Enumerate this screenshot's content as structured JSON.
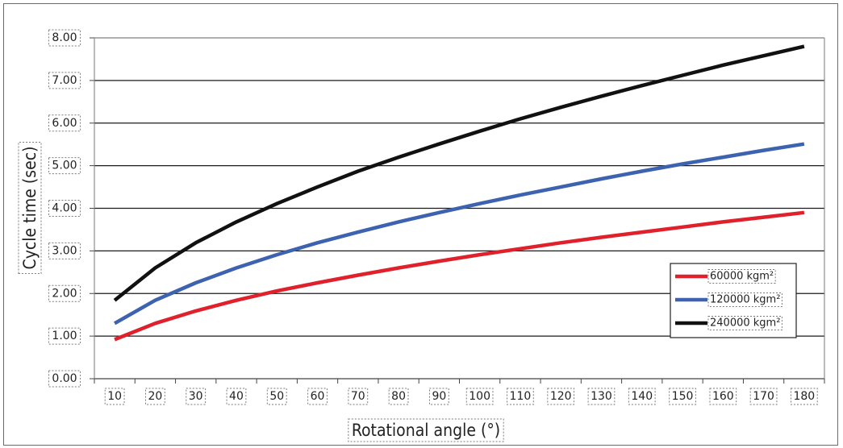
{
  "chart_data": {
    "type": "line",
    "xlabel": "Rotational angle (°)",
    "ylabel": "Cycle time (sec)",
    "x": [
      10,
      20,
      30,
      40,
      50,
      60,
      70,
      80,
      90,
      100,
      110,
      120,
      130,
      140,
      150,
      160,
      170,
      180
    ],
    "x_tick_labels": [
      "10",
      "20",
      "30",
      "40",
      "50",
      "60",
      "70",
      "80",
      "90",
      "100",
      "110",
      "120",
      "130",
      "140",
      "150",
      "160",
      "170",
      "180"
    ],
    "y_tick_labels": [
      "0.00",
      "1.00",
      "2.00",
      "3.00",
      "4.00",
      "5.00",
      "6.00",
      "7.00",
      "8.00"
    ],
    "ylim": [
      0,
      8
    ],
    "grid": "horizontal",
    "legend_position": "right",
    "series": [
      {
        "name": "60000 kgm²",
        "color": "#e0202a",
        "values": [
          0.92,
          1.3,
          1.59,
          1.84,
          2.06,
          2.25,
          2.43,
          2.6,
          2.76,
          2.91,
          3.05,
          3.19,
          3.32,
          3.44,
          3.56,
          3.68,
          3.79,
          3.9
        ]
      },
      {
        "name": "120000 kgm²",
        "color": "#3d62b0",
        "values": [
          1.3,
          1.84,
          2.25,
          2.6,
          2.91,
          3.19,
          3.44,
          3.68,
          3.9,
          4.11,
          4.31,
          4.5,
          4.69,
          4.87,
          5.04,
          5.2,
          5.36,
          5.51
        ]
      },
      {
        "name": "240000 kgm²",
        "color": "#111111",
        "values": [
          1.84,
          2.6,
          3.19,
          3.68,
          4.11,
          4.5,
          4.87,
          5.2,
          5.51,
          5.81,
          6.1,
          6.37,
          6.63,
          6.88,
          7.12,
          7.36,
          7.58,
          7.8
        ]
      }
    ]
  }
}
